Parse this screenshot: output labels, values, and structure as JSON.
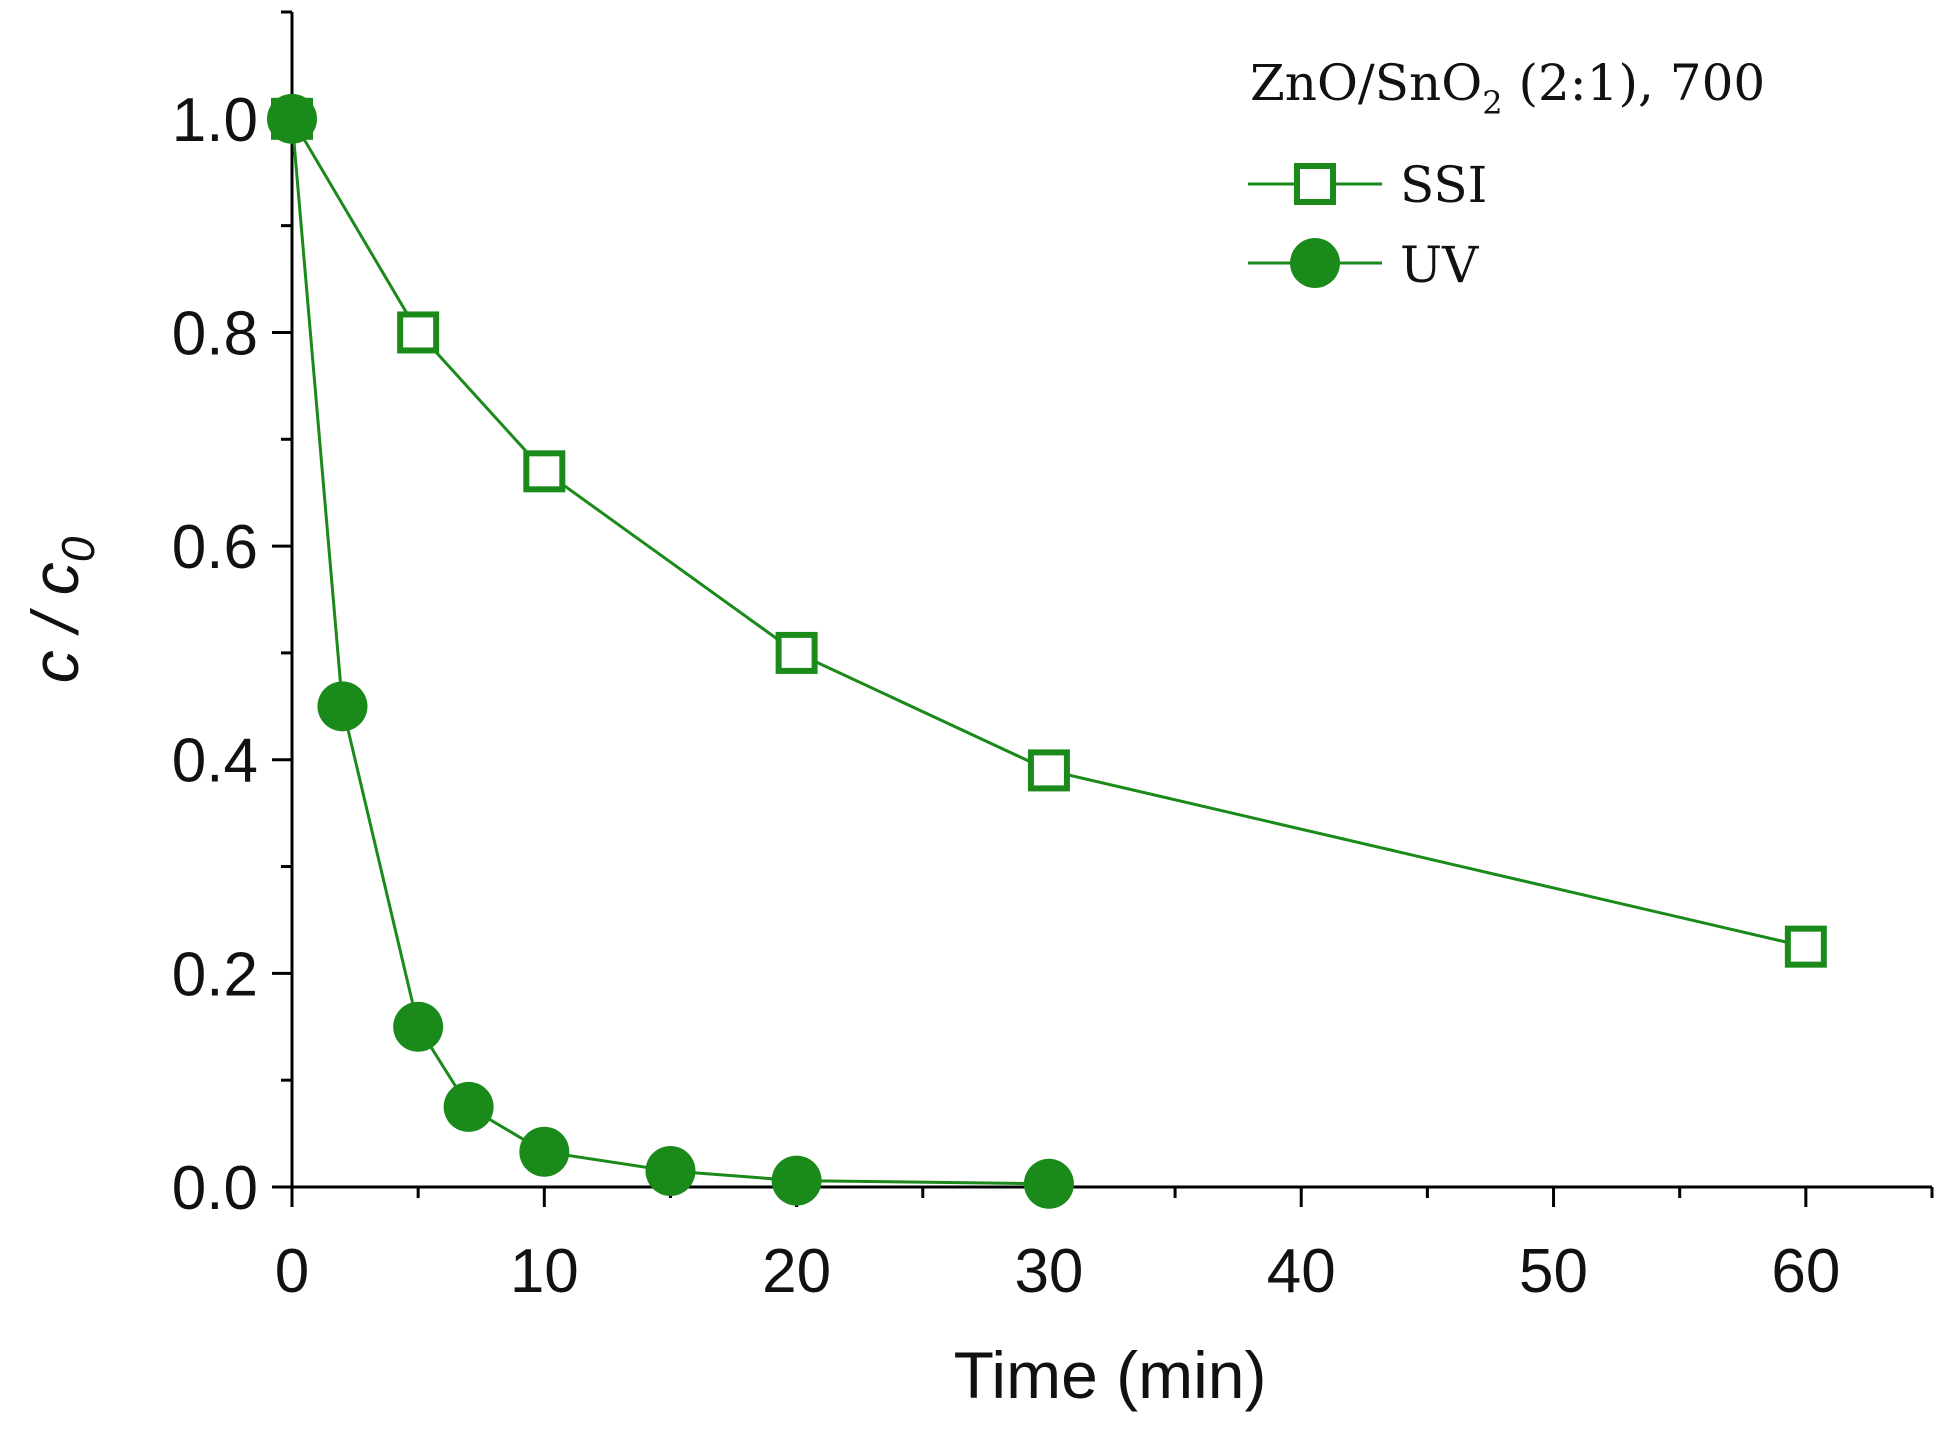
{
  "chart_data": {
    "type": "line",
    "title": "",
    "xlabel": "Time (min)",
    "ylabel": "c / c0",
    "ylabel_main": "c / c",
    "ylabel_sub": "0",
    "xlim": [
      0,
      65
    ],
    "ylim": [
      0,
      1.1
    ],
    "x_ticks": [
      0,
      10,
      20,
      30,
      40,
      50,
      60
    ],
    "x_tick_labels": [
      "0",
      "10",
      "20",
      "30",
      "40",
      "50",
      "60"
    ],
    "y_ticks": [
      0.0,
      0.2,
      0.4,
      0.6,
      0.8,
      1.0
    ],
    "y_tick_labels": [
      "0.0",
      "0.2",
      "0.4",
      "0.6",
      "0.8",
      "1.0"
    ],
    "grid": false,
    "color": "#1a8a1a",
    "legend": {
      "placement": "top-right",
      "title_prefix": "ZnO/SnO",
      "title_sub": "2",
      "title_suffix": " (2:1), 700"
    },
    "series": [
      {
        "name": "SSI",
        "marker": "open-square",
        "x": [
          0,
          5,
          10,
          20,
          30,
          60
        ],
        "y": [
          1.0,
          0.8,
          0.67,
          0.5,
          0.39,
          0.225
        ]
      },
      {
        "name": "UV",
        "marker": "filled-circle",
        "x": [
          0,
          2,
          5,
          7,
          10,
          15,
          20,
          30
        ],
        "y": [
          1.0,
          0.45,
          0.15,
          0.075,
          0.033,
          0.015,
          0.006,
          0.003
        ]
      }
    ]
  }
}
